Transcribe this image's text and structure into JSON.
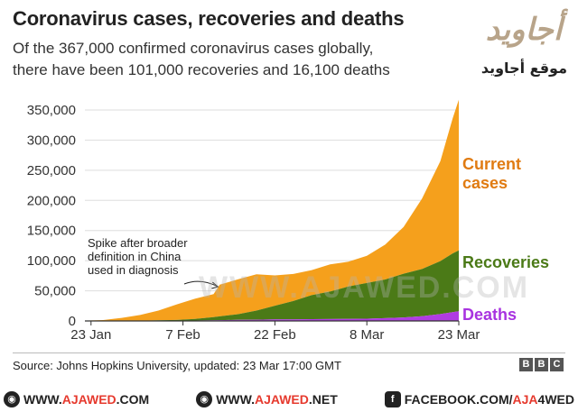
{
  "title": "Coronavirus cases, recoveries and deaths",
  "subtitle_line1": "Of the 367,000 confirmed coronavirus cases globally,",
  "subtitle_line2": "there have been 101,000 recoveries and 16,100 deaths",
  "brand": {
    "arabic_logo": "أجاويد",
    "arabic_site": "موقع أجاويد",
    "watermark": "WWW.AJAWED.COM"
  },
  "source": "Source: Johns Hopkins University, updated: 23 Mar 17:00 GMT",
  "bbc_letters": [
    "B",
    "B",
    "C"
  ],
  "footer": {
    "links": [
      {
        "icon": "globe-icon",
        "prefix": "WWW.",
        "highlight": "AJAWED",
        "suffix": ".COM"
      },
      {
        "icon": "globe-icon",
        "prefix": "WWW.",
        "highlight": "AJAWED",
        "suffix": ".NET"
      },
      {
        "icon": "facebook-icon",
        "prefix": "FACEBOOK.COM/",
        "highlight": "AJA",
        "suffix": "4WED"
      }
    ]
  },
  "colors": {
    "current": "#f5a01c",
    "recoveries": "#4b7a17",
    "deaths": "#b03ce3",
    "current_label": "#e07b12",
    "recoveries_label": "#4b7a17",
    "deaths_label": "#a833e0"
  },
  "chart_data": {
    "type": "area",
    "stacked": true,
    "x": [
      "2020-01-22",
      "2020-01-25",
      "2020-01-28",
      "2020-01-31",
      "2020-02-03",
      "2020-02-06",
      "2020-02-09",
      "2020-02-12",
      "2020-02-13",
      "2020-02-16",
      "2020-02-19",
      "2020-02-22",
      "2020-02-25",
      "2020-02-28",
      "2020-03-02",
      "2020-03-05",
      "2020-03-08",
      "2020-03-11",
      "2020-03-14",
      "2020-03-17",
      "2020-03-20",
      "2020-03-22",
      "2020-03-23"
    ],
    "series": [
      {
        "name": "Deaths",
        "values": [
          17,
          56,
          132,
          259,
          427,
          565,
          813,
          1116,
          1370,
          1775,
          2130,
          2470,
          2710,
          2920,
          3120,
          3390,
          3800,
          4620,
          5820,
          8000,
          11300,
          14600,
          16100
        ]
      },
      {
        "name": "Recoveries",
        "values": [
          28,
          39,
          107,
          222,
          620,
          1130,
          2620,
          5130,
          6300,
          9400,
          15000,
          22800,
          30300,
          39800,
          45600,
          53700,
          59100,
          64200,
          72600,
          78100,
          88000,
          97400,
          101000
        ]
      },
      {
        "name": "Current cases",
        "values": [
          510,
          1395,
          4913,
          9370,
          16103,
          25815,
          33717,
          38344,
          52630,
          57995,
          60390,
          50230,
          44990,
          41580,
          45280,
          41210,
          45101,
          57880,
          77580,
          116900,
          165700,
          224000,
          250000
        ]
      }
    ],
    "x_ticks": [
      "23 Jan",
      "7 Feb",
      "22 Feb",
      "8 Mar",
      "23 Mar"
    ],
    "y_ticks": [
      "0",
      "50,000",
      "100,000",
      "150,000",
      "200,000",
      "250,000",
      "300,000",
      "350,000"
    ],
    "ylim": [
      0,
      350000
    ],
    "grid": true,
    "series_labels": {
      "current_line1": "Current",
      "current_line2": "cases",
      "recoveries": "Recoveries",
      "deaths": "Deaths"
    },
    "annotation_lines": [
      "Spike after broader",
      "definition in China",
      "used in diagnosis"
    ]
  }
}
